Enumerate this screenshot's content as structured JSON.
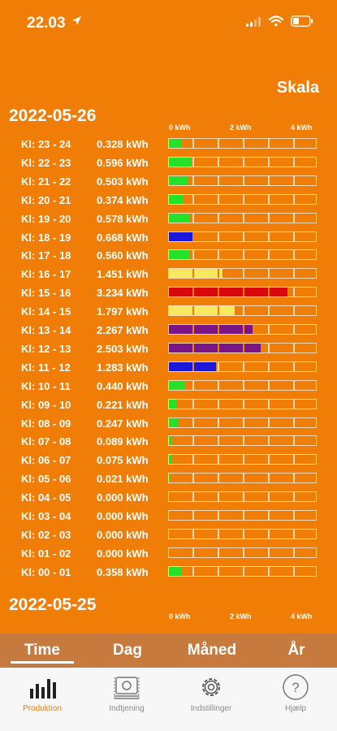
{
  "status": {
    "time": "22.03"
  },
  "header": {
    "scale_label": "Skala"
  },
  "scale": {
    "max_kwh": 4,
    "ticks": [
      "0 kWh",
      "2 kWh",
      "4 kWh"
    ]
  },
  "colors": {
    "green": "#25e12a",
    "blue": "#1c18d9",
    "yellow": "#f8e860",
    "red": "#d8070c",
    "purple": "#7a1586",
    "background": "#f07d05"
  },
  "sections": [
    {
      "date": "2022-05-26",
      "rows": [
        {
          "label": "Kl: 23 - 24",
          "value": "0.328 kWh",
          "kwh": 0.328,
          "color": "#25e12a"
        },
        {
          "label": "Kl: 22 - 23",
          "value": "0.596 kWh",
          "kwh": 0.596,
          "color": "#25e12a"
        },
        {
          "label": "Kl: 21 - 22",
          "value": "0.503 kWh",
          "kwh": 0.503,
          "color": "#25e12a"
        },
        {
          "label": "Kl: 20 - 21",
          "value": "0.374 kWh",
          "kwh": 0.374,
          "color": "#25e12a"
        },
        {
          "label": "Kl: 19 - 20",
          "value": "0.578 kWh",
          "kwh": 0.578,
          "color": "#25e12a"
        },
        {
          "label": "Kl: 18 - 19",
          "value": "0.668 kWh",
          "kwh": 0.668,
          "color": "#1c18d9"
        },
        {
          "label": "Kl: 17 - 18",
          "value": "0.560 kWh",
          "kwh": 0.56,
          "color": "#25e12a"
        },
        {
          "label": "Kl: 16 - 17",
          "value": "1.451 kWh",
          "kwh": 1.451,
          "color": "#f8e860"
        },
        {
          "label": "Kl: 15 - 16",
          "value": "3.234 kWh",
          "kwh": 3.234,
          "color": "#d8070c"
        },
        {
          "label": "Kl: 14 - 15",
          "value": "1.797 kWh",
          "kwh": 1.797,
          "color": "#f8e860"
        },
        {
          "label": "Kl: 13 - 14",
          "value": "2.267 kWh",
          "kwh": 2.267,
          "color": "#7a1586"
        },
        {
          "label": "Kl: 12 - 13",
          "value": "2.503 kWh",
          "kwh": 2.503,
          "color": "#7a1586"
        },
        {
          "label": "Kl: 11 - 12",
          "value": "1.283 kWh",
          "kwh": 1.283,
          "color": "#1c18d9"
        },
        {
          "label": "Kl: 10 - 11",
          "value": "0.440 kWh",
          "kwh": 0.44,
          "color": "#25e12a"
        },
        {
          "label": "Kl: 09 - 10",
          "value": "0.221 kWh",
          "kwh": 0.221,
          "color": "#25e12a"
        },
        {
          "label": "Kl: 08 - 09",
          "value": "0.247 kWh",
          "kwh": 0.247,
          "color": "#25e12a"
        },
        {
          "label": "Kl: 07 - 08",
          "value": "0.089 kWh",
          "kwh": 0.089,
          "color": "#25e12a"
        },
        {
          "label": "Kl: 06 - 07",
          "value": "0.075 kWh",
          "kwh": 0.075,
          "color": "#25e12a"
        },
        {
          "label": "Kl: 05 - 06",
          "value": "0.021 kWh",
          "kwh": 0.021,
          "color": "#25e12a"
        },
        {
          "label": "Kl: 04 - 05",
          "value": "0.000 kWh",
          "kwh": 0.0,
          "color": "#25e12a"
        },
        {
          "label": "Kl: 03 - 04",
          "value": "0.000 kWh",
          "kwh": 0.0,
          "color": "#25e12a"
        },
        {
          "label": "Kl: 02 - 03",
          "value": "0.000 kWh",
          "kwh": 0.0,
          "color": "#25e12a"
        },
        {
          "label": "Kl: 01 - 02",
          "value": "0.000 kWh",
          "kwh": 0.0,
          "color": "#25e12a"
        },
        {
          "label": "Kl: 00 - 01",
          "value": "0.358 kWh",
          "kwh": 0.358,
          "color": "#25e12a"
        }
      ]
    },
    {
      "date": "2022-05-25",
      "rows": []
    }
  ],
  "tabs": [
    "Time",
    "Dag",
    "Måned",
    "År"
  ],
  "active_tab": "Time",
  "nav": [
    {
      "label": "Produktion",
      "icon": "bar-chart-icon"
    },
    {
      "label": "Indtjening",
      "icon": "money-icon"
    },
    {
      "label": "Indstillinger",
      "icon": "gear-icon"
    },
    {
      "label": "Hjælp",
      "icon": "help-icon"
    }
  ],
  "active_nav": "Produktion"
}
